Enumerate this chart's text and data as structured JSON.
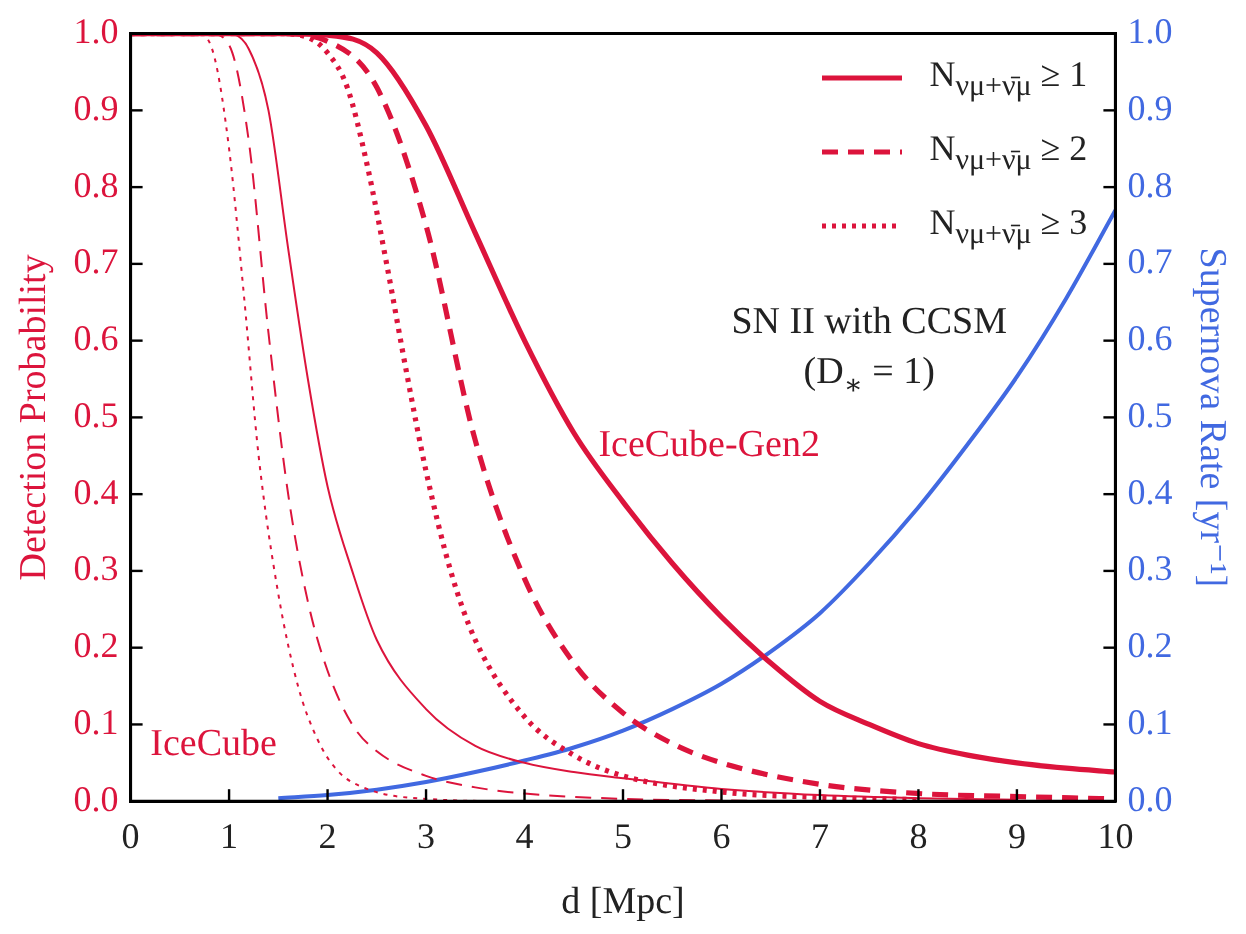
{
  "chart_data": {
    "type": "line",
    "xlabel": "d [Mpc]",
    "ylabel": "Detection Probability",
    "y2label": "Supernova Rate [yr⁻¹]",
    "xlim": [
      0,
      10
    ],
    "xticks": [
      0,
      1,
      2,
      3,
      4,
      5,
      6,
      7,
      8,
      9,
      10
    ],
    "ylim": [
      0,
      1
    ],
    "yticks": [
      {
        "value": 0,
        "label": "0.0"
      },
      0.1,
      0.2,
      0.3,
      0.4,
      0.5,
      0.6,
      0.7,
      0.8,
      0.9,
      {
        "value": 1,
        "label": "1.0"
      }
    ],
    "y2lim": [
      0,
      1
    ],
    "y2ticks": [
      {
        "value": 0,
        "label": "0.0"
      },
      0.1,
      0.2,
      0.3,
      0.4,
      0.5,
      0.6,
      0.7,
      0.8,
      0.9,
      {
        "value": 1,
        "label": "1.0"
      }
    ],
    "legend": "top right",
    "marker": "none",
    "series": [
      {
        "name": "N$_{νμ+ν̄μ}$ ≥ 1",
        "color": "#dc143c",
        "line_style": "solid",
        "x": [
          0,
          1.5,
          2,
          2.5,
          3,
          3.5,
          4,
          4.5,
          5,
          5.5,
          6,
          6.5,
          7,
          7.5,
          8,
          8.5,
          9,
          9.5,
          10
        ],
        "values": [
          1,
          1,
          0.998,
          0.975,
          0.88,
          0.74,
          0.6,
          0.48,
          0.39,
          0.31,
          0.24,
          0.18,
          0.13,
          0.1,
          0.075,
          0.06,
          0.05,
          0.043,
          0.038
        ]
      },
      {
        "name": "N$_{νμ+ν̄μ}$ ≥ 2",
        "color": "#dc143c",
        "line_style": "dashed",
        "x": [
          0,
          1.5,
          2,
          2.5,
          3,
          3.5,
          4,
          4.5,
          5,
          5.5,
          6,
          7,
          8,
          9,
          10
        ],
        "values": [
          1,
          1,
          0.99,
          0.93,
          0.75,
          0.47,
          0.29,
          0.18,
          0.115,
          0.075,
          0.05,
          0.022,
          0.01,
          0.006,
          0.003
        ]
      },
      {
        "name": "N$_{νμ+ν̄μ}$ ≥ 3",
        "color": "#dc143c",
        "line_style": "dotted",
        "x": [
          0,
          1.5,
          1.8,
          2,
          2.2,
          2.4,
          2.6,
          2.8,
          3,
          3.25,
          3.5,
          4,
          4.5,
          5,
          6,
          7,
          8
        ],
        "values": [
          1,
          1,
          0.995,
          0.975,
          0.93,
          0.83,
          0.7,
          0.56,
          0.43,
          0.3,
          0.21,
          0.11,
          0.06,
          0.033,
          0.012,
          0.005,
          0.002
        ]
      },
      {
        "color": "#dc143c",
        "line_style": "solid",
        "x": [
          0,
          1,
          1.2,
          1.4,
          1.6,
          1.8,
          2,
          2.25,
          2.5,
          3,
          3.5,
          4,
          4.5,
          5,
          6,
          7,
          8,
          9
        ],
        "values": [
          1,
          1,
          0.98,
          0.9,
          0.72,
          0.55,
          0.41,
          0.3,
          0.21,
          0.12,
          0.072,
          0.05,
          0.038,
          0.03,
          0.016,
          0.008,
          0.004,
          0.002
        ]
      },
      {
        "color": "#dc143c",
        "line_style": "dashed",
        "x": [
          0,
          0.8,
          1,
          1.2,
          1.4,
          1.6,
          1.8,
          2,
          2.25,
          2.5,
          3,
          3.5,
          4,
          5,
          6,
          7
        ],
        "values": [
          1,
          1,
          0.985,
          0.86,
          0.61,
          0.4,
          0.26,
          0.17,
          0.1,
          0.065,
          0.033,
          0.018,
          0.01,
          0.003,
          0.001,
          0
        ]
      },
      {
        "color": "#dc143c",
        "line_style": "dotted",
        "x": [
          0,
          0.7,
          0.85,
          1,
          1.15,
          1.3,
          1.5,
          1.7,
          1.9,
          2.1,
          2.4,
          3,
          4,
          6
        ],
        "values": [
          1,
          1,
          0.97,
          0.85,
          0.66,
          0.45,
          0.27,
          0.15,
          0.08,
          0.04,
          0.016,
          0.003,
          0,
          0
        ]
      },
      {
        "color": "#4169e1",
        "line_style": "solid",
        "axis": "y2",
        "x": [
          1.5,
          2,
          2.5,
          3,
          3.5,
          4,
          4.5,
          5,
          5.5,
          6,
          6.5,
          7,
          7.5,
          8,
          8.5,
          9,
          9.5,
          10
        ],
        "values": [
          0.004,
          0.008,
          0.015,
          0.025,
          0.038,
          0.053,
          0.07,
          0.092,
          0.12,
          0.153,
          0.195,
          0.245,
          0.31,
          0.383,
          0.465,
          0.553,
          0.655,
          0.77
        ]
      }
    ],
    "annotations": [
      "IceCube-Gen2",
      "IceCube",
      "SN II with CCSM",
      "(D$_{∗}$ = 1)"
    ]
  }
}
